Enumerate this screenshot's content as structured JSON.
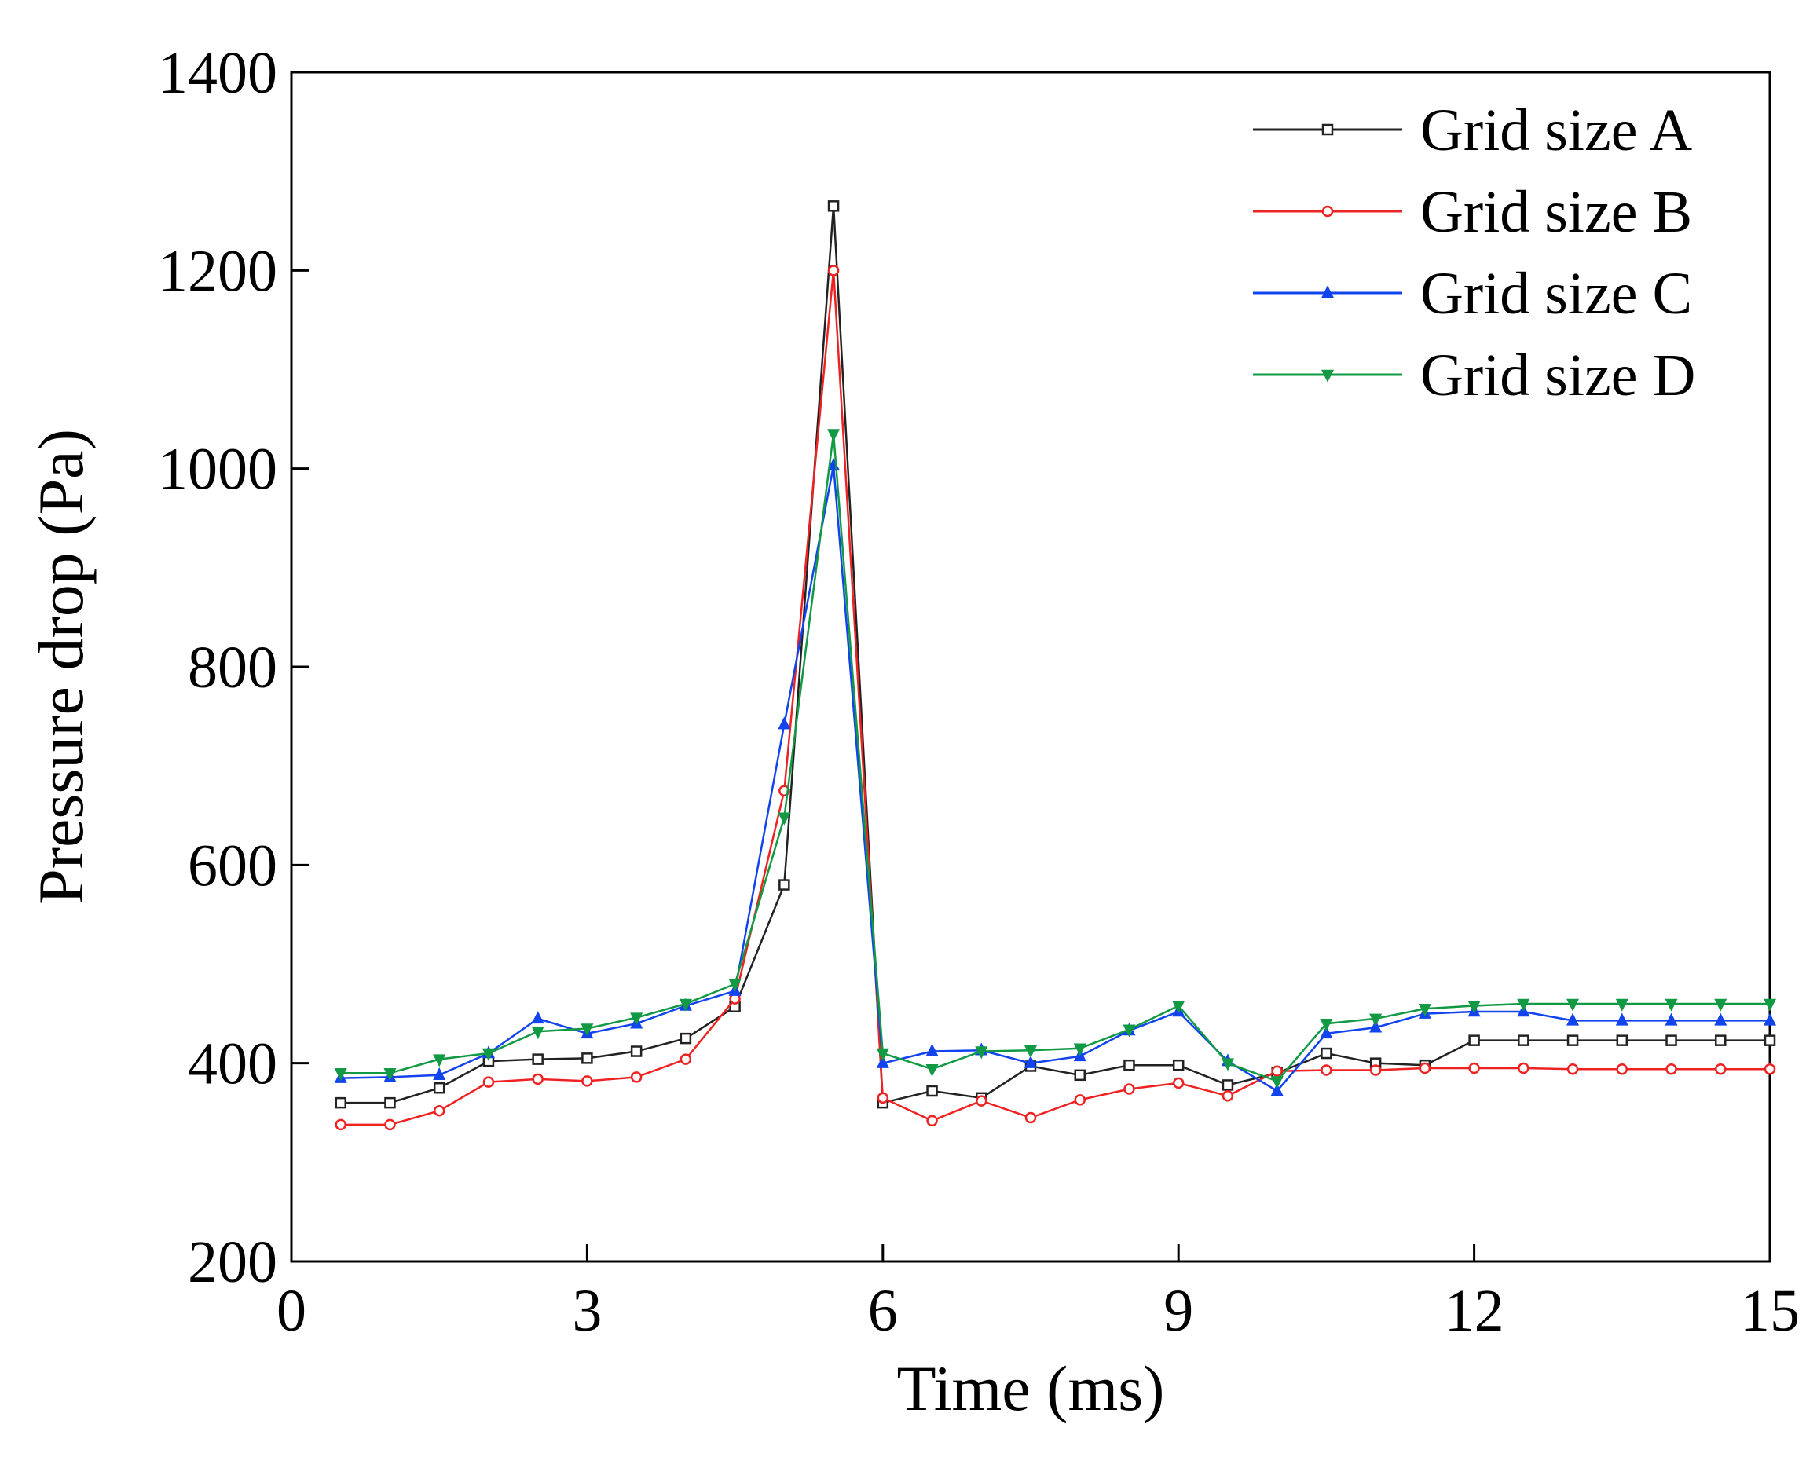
{
  "chart_data": {
    "type": "line",
    "xlabel": "Time (ms)",
    "ylabel": "Pressure drop (Pa)",
    "x": [
      0.5,
      1,
      1.5,
      2,
      2.5,
      3,
      3.5,
      4,
      4.5,
      5,
      5.5,
      6,
      6.5,
      7,
      7.5,
      8,
      8.5,
      9,
      9.5,
      10,
      10.5,
      11,
      11.5,
      12,
      12.5,
      13,
      13.5,
      14,
      14.5,
      15
    ],
    "series": [
      {
        "name": "Grid size A",
        "color": "#222222",
        "marker": "square",
        "values": [
          360,
          360,
          375,
          402,
          404,
          405,
          412,
          425,
          457,
          580,
          1265,
          360,
          372,
          365,
          397,
          388,
          398,
          398,
          378,
          390,
          410,
          400,
          398,
          423,
          423,
          423,
          423,
          423,
          423,
          423
        ]
      },
      {
        "name": "Grid size B",
        "color": "#ee2222",
        "marker": "circle",
        "values": [
          338,
          338,
          352,
          381,
          384,
          382,
          386,
          404,
          465,
          675,
          1200,
          365,
          342,
          362,
          345,
          363,
          374,
          380,
          367,
          392,
          393,
          393,
          395,
          395,
          395,
          394,
          394,
          394,
          394,
          394
        ]
      },
      {
        "name": "Grid size C",
        "color": "#1144ee",
        "marker": "triangle-up",
        "values": [
          385,
          386,
          388,
          410,
          445,
          430,
          440,
          458,
          473,
          742,
          1003,
          400,
          412,
          413,
          400,
          407,
          433,
          452,
          402,
          372,
          430,
          436,
          450,
          452,
          452,
          443,
          443,
          443,
          443,
          443
        ]
      },
      {
        "name": "Grid size D",
        "color": "#119944",
        "marker": "triangle-down",
        "values": [
          390,
          390,
          404,
          410,
          432,
          435,
          446,
          460,
          480,
          648,
          1035,
          410,
          394,
          412,
          413,
          415,
          434,
          458,
          400,
          382,
          440,
          445,
          455,
          458,
          460,
          460,
          460,
          460,
          460,
          460
        ]
      }
    ],
    "xlim": [
      0,
      15
    ],
    "xticks": [
      0,
      3,
      6,
      9,
      12,
      15
    ],
    "ylim": [
      200,
      1400
    ],
    "yticks": [
      200,
      400,
      600,
      800,
      1000,
      1200,
      1400
    ],
    "grid": false,
    "legend": "upper right"
  }
}
